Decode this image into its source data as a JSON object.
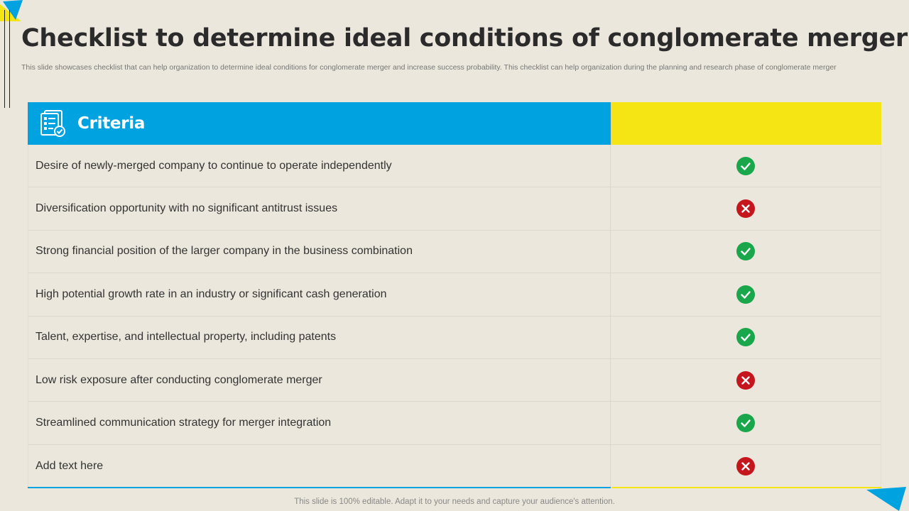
{
  "slide": {
    "title": "Checklist to determine ideal conditions of conglomerate merger",
    "subtitle": "This slide showcases checklist that can help organization to determine ideal conditions for conglomerate merger and increase success probability. This checklist can help organization during the planning and research phase of conglomerate merger",
    "footer": "This slide is 100% editable. Adapt it to your needs and capture your audience's attention."
  },
  "table": {
    "header_label": "Criteria",
    "header_icon": "checklist-document-icon",
    "rows": [
      {
        "text": "Desire of newly-merged  company to continue to operate independently",
        "status": "check"
      },
      {
        "text": "Diversification opportunity with no significant antitrust  issues",
        "status": "cross"
      },
      {
        "text": "Strong financial position of the larger company in the business combination",
        "status": "check"
      },
      {
        "text": "High potential growth rate in an industry  or significant cash generation",
        "status": "check"
      },
      {
        "text": "Talent,  expertise, and intellectual  property, including patents",
        "status": "check"
      },
      {
        "text": "Low risk exposure after conducting  conglomerate merger",
        "status": "cross"
      },
      {
        "text": "Streamlined communication strategy for merger integration",
        "status": "check"
      },
      {
        "text": "Add text here",
        "status": "cross"
      }
    ]
  },
  "colors": {
    "background": "#ebe7dc",
    "header_blue": "#00a3e0",
    "header_yellow": "#f5e515",
    "check_green": "#1aa64a",
    "cross_red": "#c5161d"
  }
}
